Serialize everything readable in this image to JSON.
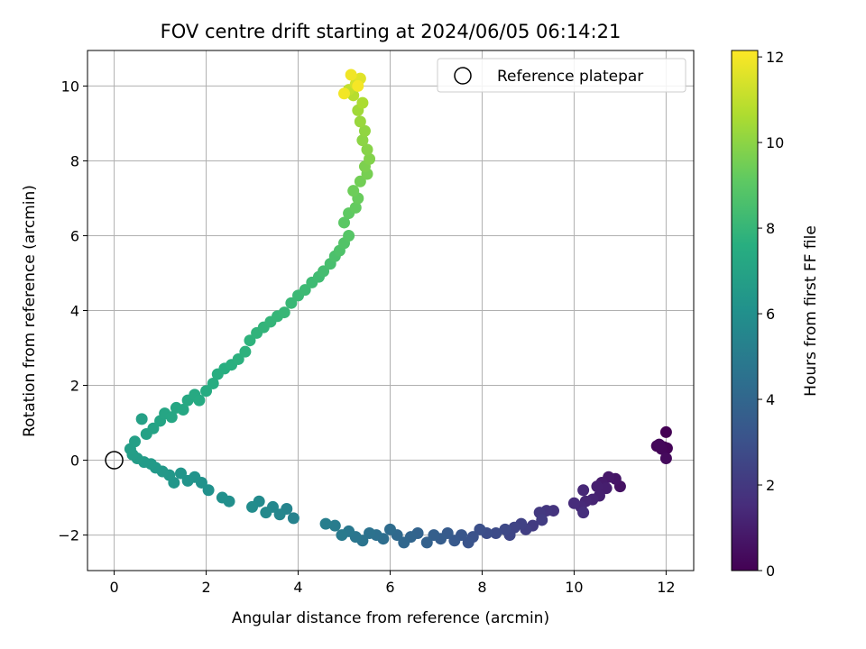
{
  "chart_data": {
    "type": "scatter",
    "title": "FOV centre drift starting at 2024/06/05 06:14:21",
    "xlabel": "Angular distance from reference (arcmin)",
    "ylabel": "Rotation from reference (arcmin)",
    "xlim": [
      -0.58,
      12.6
    ],
    "ylim": [
      -2.95,
      10.95
    ],
    "xticks": [
      0,
      2,
      4,
      6,
      8,
      10,
      12
    ],
    "yticks": [
      -2,
      0,
      2,
      4,
      6,
      8,
      10
    ],
    "grid": true,
    "legend": {
      "placement": "top-right",
      "entries": [
        {
          "label": "Reference platepar",
          "marker": "open-circle"
        }
      ]
    },
    "colorbar": {
      "label": "Hours from first FF file",
      "colormap": "viridis",
      "range": [
        0,
        12.15
      ],
      "ticks": [
        0,
        2,
        4,
        6,
        8,
        10,
        12
      ]
    },
    "reference_point": {
      "x": 0,
      "y": 0
    },
    "series": [
      {
        "color_value": "hours",
        "points": [
          [
            12.0,
            0.75,
            0.0
          ],
          [
            11.95,
            0.35,
            0.05
          ],
          [
            12.02,
            0.32,
            0.1
          ],
          [
            11.8,
            0.38,
            0.15
          ],
          [
            11.9,
            0.3,
            0.2
          ],
          [
            11.85,
            0.42,
            0.25
          ],
          [
            12.0,
            0.05,
            0.3
          ],
          [
            11.0,
            -0.7,
            0.6
          ],
          [
            10.9,
            -0.5,
            0.7
          ],
          [
            10.75,
            -0.45,
            0.8
          ],
          [
            10.6,
            -0.6,
            0.9
          ],
          [
            10.7,
            -0.75,
            1.0
          ],
          [
            10.5,
            -0.7,
            1.05
          ],
          [
            10.55,
            -0.95,
            1.1
          ],
          [
            10.4,
            -1.05,
            1.2
          ],
          [
            10.25,
            -1.1,
            1.3
          ],
          [
            10.2,
            -0.8,
            1.35
          ],
          [
            10.15,
            -1.25,
            1.4
          ],
          [
            10.0,
            -1.15,
            1.5
          ],
          [
            10.2,
            -1.4,
            1.6
          ],
          [
            9.55,
            -1.35,
            1.8
          ],
          [
            9.4,
            -1.35,
            1.9
          ],
          [
            9.25,
            -1.4,
            2.0
          ],
          [
            9.1,
            -1.75,
            2.1
          ],
          [
            9.3,
            -1.6,
            2.15
          ],
          [
            8.95,
            -1.85,
            2.25
          ],
          [
            8.85,
            -1.7,
            2.35
          ],
          [
            8.7,
            -1.8,
            2.45
          ],
          [
            8.6,
            -2.0,
            2.55
          ],
          [
            8.5,
            -1.85,
            2.65
          ],
          [
            8.3,
            -1.95,
            2.75
          ],
          [
            8.1,
            -1.95,
            2.85
          ],
          [
            7.95,
            -1.85,
            2.95
          ],
          [
            7.8,
            -2.05,
            3.05
          ],
          [
            7.7,
            -2.2,
            3.15
          ],
          [
            7.55,
            -2.0,
            3.25
          ],
          [
            7.4,
            -2.15,
            3.35
          ],
          [
            7.25,
            -1.95,
            3.45
          ],
          [
            7.1,
            -2.1,
            3.55
          ],
          [
            6.95,
            -2.0,
            3.65
          ],
          [
            6.8,
            -2.2,
            3.75
          ],
          [
            6.6,
            -1.95,
            3.85
          ],
          [
            6.45,
            -2.05,
            3.95
          ],
          [
            6.3,
            -2.2,
            4.05
          ],
          [
            6.15,
            -2.0,
            4.15
          ],
          [
            6.0,
            -1.85,
            4.25
          ],
          [
            5.85,
            -2.1,
            4.35
          ],
          [
            5.7,
            -2.0,
            4.45
          ],
          [
            5.55,
            -1.95,
            4.55
          ],
          [
            5.4,
            -2.15,
            4.65
          ],
          [
            5.25,
            -2.05,
            4.75
          ],
          [
            5.1,
            -1.9,
            4.85
          ],
          [
            4.95,
            -2.0,
            4.95
          ],
          [
            4.8,
            -1.75,
            5.05
          ],
          [
            4.6,
            -1.7,
            5.15
          ],
          [
            3.9,
            -1.55,
            5.35
          ],
          [
            3.75,
            -1.3,
            5.45
          ],
          [
            3.6,
            -1.45,
            5.55
          ],
          [
            3.45,
            -1.25,
            5.6
          ],
          [
            3.3,
            -1.4,
            5.7
          ],
          [
            3.15,
            -1.1,
            5.75
          ],
          [
            3.0,
            -1.25,
            5.85
          ],
          [
            2.5,
            -1.1,
            6.0
          ],
          [
            2.35,
            -1.0,
            6.05
          ],
          [
            2.05,
            -0.8,
            6.1
          ],
          [
            1.9,
            -0.6,
            6.15
          ],
          [
            1.75,
            -0.45,
            6.2
          ],
          [
            1.6,
            -0.55,
            6.25
          ],
          [
            1.45,
            -0.35,
            6.3
          ],
          [
            1.3,
            -0.6,
            6.35
          ],
          [
            1.2,
            -0.4,
            6.4
          ],
          [
            1.05,
            -0.3,
            6.45
          ],
          [
            0.9,
            -0.2,
            6.5
          ],
          [
            0.8,
            -0.1,
            6.55
          ],
          [
            0.65,
            -0.05,
            6.6
          ],
          [
            0.5,
            0.05,
            6.65
          ],
          [
            0.4,
            0.15,
            6.7
          ],
          [
            0.35,
            0.3,
            6.75
          ],
          [
            0.45,
            0.5,
            6.8
          ],
          [
            0.6,
            1.1,
            6.85
          ],
          [
            0.7,
            0.7,
            6.9
          ],
          [
            0.85,
            0.85,
            6.95
          ],
          [
            1.0,
            1.05,
            7.05
          ],
          [
            1.1,
            1.25,
            7.1
          ],
          [
            1.25,
            1.15,
            7.15
          ],
          [
            1.35,
            1.4,
            7.2
          ],
          [
            1.5,
            1.35,
            7.25
          ],
          [
            1.6,
            1.6,
            7.3
          ],
          [
            1.75,
            1.75,
            7.35
          ],
          [
            1.85,
            1.6,
            7.4
          ],
          [
            2.0,
            1.85,
            7.45
          ],
          [
            2.15,
            2.05,
            7.5
          ],
          [
            2.25,
            2.3,
            7.55
          ],
          [
            2.4,
            2.45,
            7.6
          ],
          [
            2.55,
            2.55,
            7.65
          ],
          [
            2.7,
            2.7,
            7.7
          ],
          [
            2.85,
            2.9,
            7.75
          ],
          [
            2.95,
            3.2,
            7.8
          ],
          [
            3.1,
            3.4,
            7.85
          ],
          [
            3.25,
            3.55,
            7.9
          ],
          [
            3.4,
            3.7,
            7.95
          ],
          [
            3.55,
            3.85,
            8.0
          ],
          [
            3.7,
            3.95,
            8.05
          ],
          [
            3.85,
            4.2,
            8.1
          ],
          [
            4.0,
            4.4,
            8.15
          ],
          [
            4.15,
            4.55,
            8.2
          ],
          [
            4.3,
            4.75,
            8.25
          ],
          [
            4.45,
            4.9,
            8.3
          ],
          [
            4.55,
            5.05,
            8.4
          ],
          [
            4.7,
            5.25,
            8.5
          ],
          [
            4.8,
            5.45,
            8.6
          ],
          [
            4.9,
            5.6,
            8.7
          ],
          [
            5.0,
            5.8,
            8.8
          ],
          [
            5.1,
            6.0,
            8.9
          ],
          [
            5.0,
            6.35,
            9.0
          ],
          [
            5.1,
            6.6,
            9.1
          ],
          [
            5.25,
            6.75,
            9.2
          ],
          [
            5.3,
            7.0,
            9.3
          ],
          [
            5.2,
            7.2,
            9.4
          ],
          [
            5.35,
            7.45,
            9.5
          ],
          [
            5.5,
            7.65,
            9.6
          ],
          [
            5.45,
            7.85,
            9.7
          ],
          [
            5.55,
            8.05,
            9.8
          ],
          [
            5.5,
            8.3,
            9.9
          ],
          [
            5.4,
            8.55,
            10.0
          ],
          [
            5.45,
            8.8,
            10.1
          ],
          [
            5.35,
            9.05,
            10.25
          ],
          [
            5.3,
            9.35,
            10.4
          ],
          [
            5.4,
            9.55,
            10.6
          ],
          [
            5.2,
            9.75,
            10.8
          ],
          [
            5.1,
            9.9,
            11.0
          ],
          [
            5.25,
            10.05,
            11.3
          ],
          [
            5.35,
            10.2,
            11.6
          ],
          [
            5.15,
            10.3,
            11.9
          ],
          [
            5.0,
            9.8,
            11.95
          ],
          [
            5.3,
            10.0,
            12.0
          ]
        ]
      }
    ]
  }
}
